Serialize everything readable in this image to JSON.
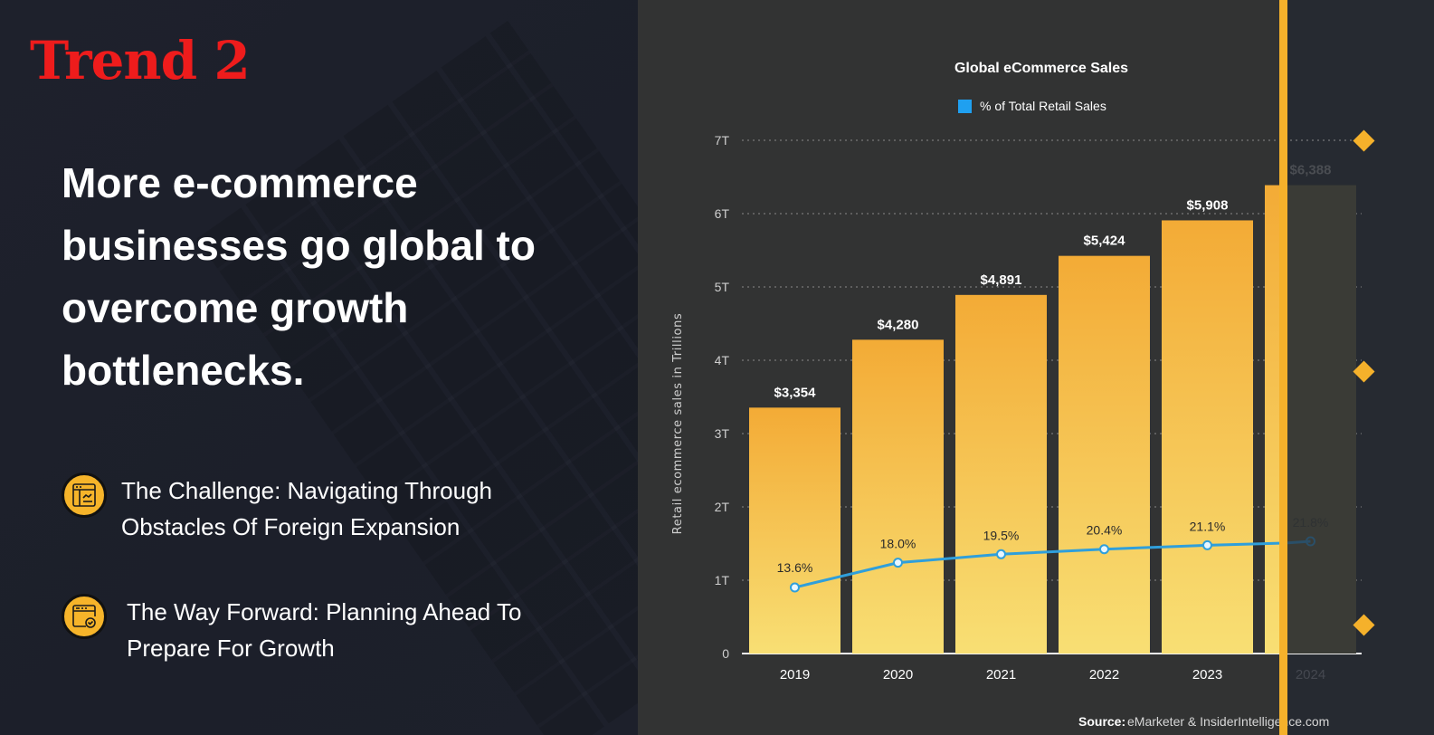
{
  "left_panel": {
    "trend_label": "Trend 2",
    "headline": "More e-commerce businesses go global to overcome growth bottlenecks.",
    "points": [
      {
        "icon": "browser-chart-icon",
        "text": "The Challenge: Navigating Through Obstacles Of Foreign Expansion"
      },
      {
        "icon": "browser-check-icon",
        "text": "The Way Forward: Planning Ahead To Prepare For Growth"
      }
    ]
  },
  "colors": {
    "trend_label": "#ee1c1c",
    "accent": "#f5b12b",
    "bar_top": "#f3ab36",
    "bar_bottom": "#f8df74",
    "line": "#2f9fdb",
    "left_bg": "#1d202b",
    "chart_bg": "#323333"
  },
  "chart_data": {
    "type": "bar",
    "title": "Global eCommerce Sales",
    "legend": [
      {
        "label": "% of Total Retail Sales",
        "color": "#1fa0f0"
      }
    ],
    "legend_position": "top-center",
    "ylabel": "Retail ecommerce sales in Trillions",
    "xlabel": "",
    "ylim": [
      0,
      7
    ],
    "yticks": [
      0,
      1,
      2,
      3,
      4,
      5,
      6,
      7
    ],
    "ytick_labels": [
      "0",
      "1T",
      "2T",
      "3T",
      "4T",
      "5T",
      "6T",
      "7T"
    ],
    "grid": true,
    "categories": [
      "2019",
      "2020",
      "2021",
      "2022",
      "2023",
      "2024"
    ],
    "series": [
      {
        "name": "Retail ecommerce sales (billions USD)",
        "type": "bar",
        "values": [
          3354,
          4280,
          4891,
          5424,
          5908,
          6388
        ],
        "labels": [
          "$3,354",
          "$4,280",
          "$4,891",
          "$5,424",
          "$5,908",
          "$6,388"
        ]
      },
      {
        "name": "% of Total Retail Sales",
        "type": "line",
        "values": [
          13.6,
          18.0,
          19.5,
          20.4,
          21.1,
          21.8
        ],
        "labels": [
          "13.6%",
          "18.0%",
          "19.5%",
          "20.4%",
          "21.1%",
          "21.8%"
        ]
      }
    ],
    "source_label": "Source:",
    "source_text": "eMarketer & InsiderIntelligence.com"
  }
}
